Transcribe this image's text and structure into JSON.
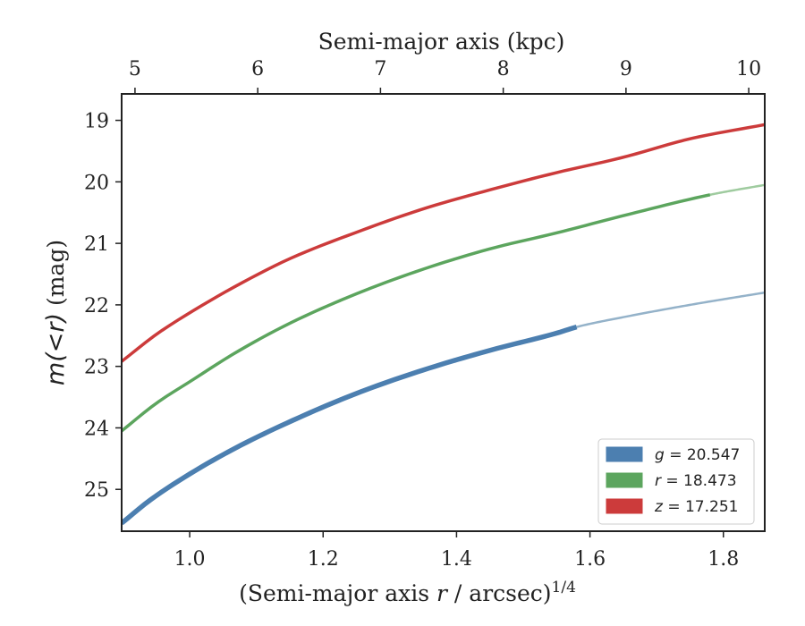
{
  "chart_data": {
    "type": "line",
    "x_axis": {
      "label_prefix": "(Semi-major axis ",
      "label_var": "r",
      "label_suffix": " / arcsec)",
      "label_superscript": "1/4",
      "range": [
        0.898,
        1.862
      ],
      "ticks": [
        1.0,
        1.2,
        1.4,
        1.6,
        1.8
      ],
      "tick_labels": [
        "1.0",
        "1.2",
        "1.4",
        "1.6",
        "1.8"
      ]
    },
    "top_axis": {
      "label": "Semi-major axis (kpc)",
      "ticks": [
        5,
        6,
        7,
        8,
        9,
        10
      ],
      "tick_labels": [
        "5",
        "6",
        "7",
        "8",
        "9",
        "10"
      ],
      "tick_x_positions": [
        0.918,
        1.102,
        1.286,
        1.47,
        1.654,
        1.838
      ]
    },
    "y_axis": {
      "label_var": "m(<r)",
      "label_unit": " (mag)",
      "range": [
        18.57,
        25.68
      ],
      "inverted": true,
      "ticks": [
        19,
        20,
        21,
        22,
        23,
        24,
        25
      ],
      "tick_labels": [
        "19",
        "20",
        "21",
        "22",
        "23",
        "24",
        "25"
      ]
    },
    "series": [
      {
        "name": "g",
        "legend_var": "g",
        "legend_value": " = 20.547",
        "color": "#4c7fb0",
        "extrap_color": "#94b2c9",
        "solid_end_x": 1.58,
        "x": [
          0.898,
          0.94,
          1.0,
          1.07,
          1.15,
          1.25,
          1.35,
          1.45,
          1.55,
          1.58,
          1.65,
          1.75,
          1.862
        ],
        "y": [
          25.55,
          25.18,
          24.75,
          24.32,
          23.9,
          23.44,
          23.06,
          22.74,
          22.46,
          22.36,
          22.2,
          22.0,
          21.8
        ]
      },
      {
        "name": "r",
        "legend_var": "r",
        "legend_value": " = 18.473",
        "color": "#5ca55e",
        "extrap_color": "#9fcb9f",
        "solid_end_x": 1.78,
        "x": [
          0.898,
          0.95,
          1.0,
          1.07,
          1.15,
          1.25,
          1.35,
          1.45,
          1.55,
          1.65,
          1.78,
          1.862
        ],
        "y": [
          24.05,
          23.6,
          23.25,
          22.77,
          22.3,
          21.82,
          21.42,
          21.09,
          20.83,
          20.55,
          20.21,
          20.05
        ]
      },
      {
        "name": "z",
        "legend_var": "z",
        "legend_value": " = 17.251",
        "color": "#cc3b3b",
        "extrap_color": "#cc3b3b",
        "solid_end_x": 1.862,
        "x": [
          0.898,
          0.95,
          1.0,
          1.07,
          1.15,
          1.25,
          1.35,
          1.45,
          1.55,
          1.65,
          1.75,
          1.862
        ],
        "y": [
          22.92,
          22.48,
          22.13,
          21.69,
          21.25,
          20.82,
          20.44,
          20.13,
          19.85,
          19.6,
          19.3,
          19.07
        ]
      }
    ],
    "legend_position": "lower-right",
    "grid": false
  }
}
